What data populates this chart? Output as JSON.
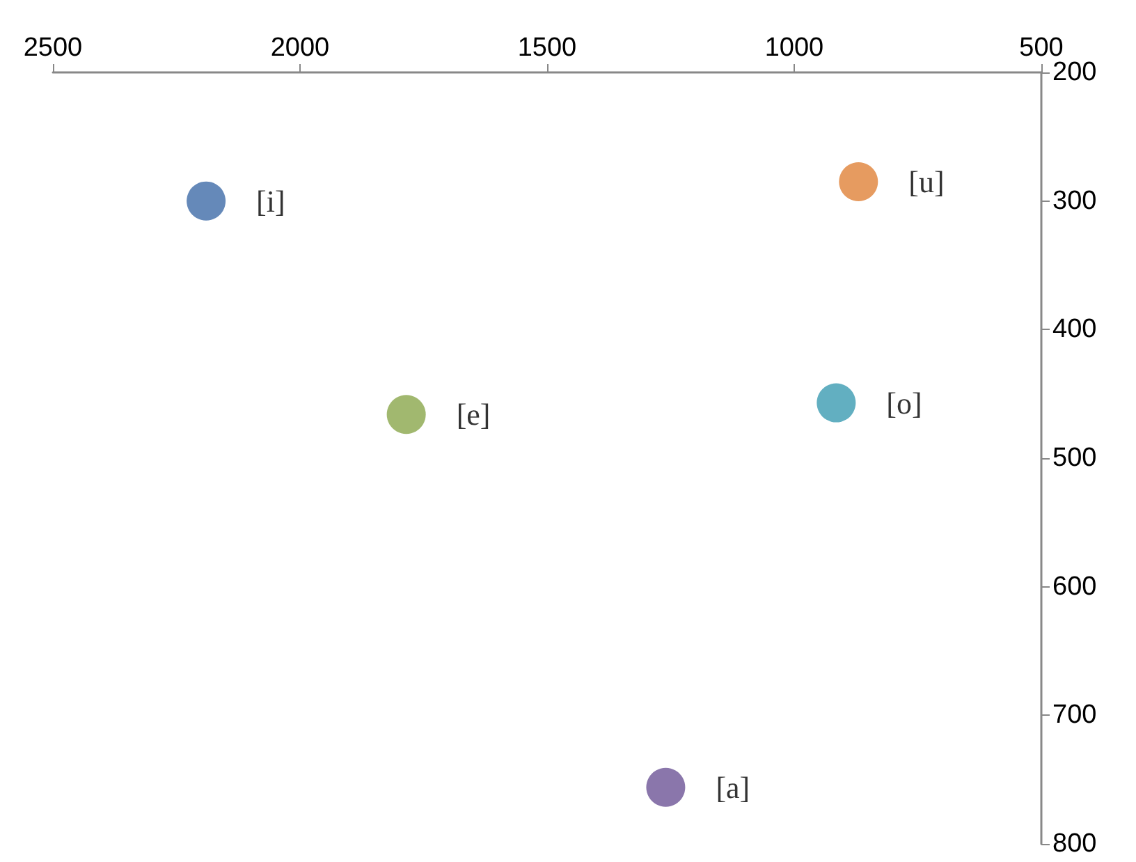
{
  "chart_data": {
    "type": "scatter",
    "xlim": [
      2500,
      500
    ],
    "ylim": [
      800,
      200
    ],
    "xticks": [
      2500,
      2000,
      1500,
      1000,
      500
    ],
    "yticks": [
      200,
      300,
      400,
      500,
      600,
      700,
      800
    ],
    "grid": false,
    "marker": "circle",
    "legend": false,
    "series": [
      {
        "name": "[i]",
        "color": "#3f6ca8",
        "x": [
          2190
        ],
        "values": [
          300
        ]
      },
      {
        "name": "[u]",
        "color": "#e08238",
        "x": [
          870
        ],
        "values": [
          285
        ]
      },
      {
        "name": "[e]",
        "color": "#8aa64b",
        "x": [
          1785
        ],
        "values": [
          466
        ]
      },
      {
        "name": "[o]",
        "color": "#3b9bb1",
        "x": [
          915
        ],
        "values": [
          457
        ]
      },
      {
        "name": "[a]",
        "color": "#6d5496",
        "x": [
          1260
        ],
        "values": [
          756
        ]
      }
    ]
  }
}
